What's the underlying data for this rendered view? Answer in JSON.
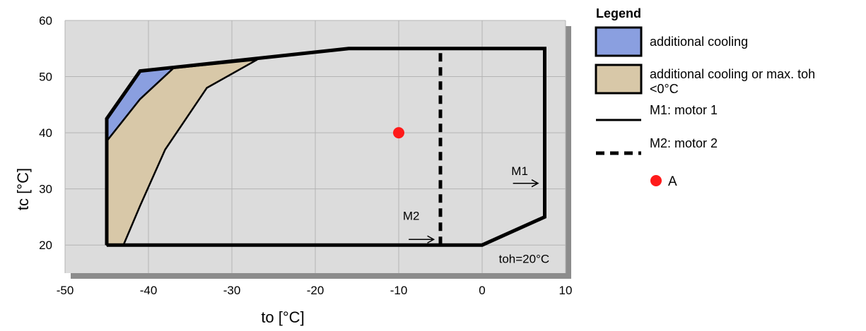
{
  "chart_data": {
    "type": "area",
    "xlabel": "to [°C]",
    "ylabel": "tc [°C]",
    "xlim": [
      -50,
      10
    ],
    "ylim": [
      15,
      60
    ],
    "xticks": [
      -50,
      -40,
      -30,
      -20,
      -10,
      0,
      10
    ],
    "yticks": [
      20,
      30,
      40,
      50,
      60
    ],
    "grid": true,
    "legend_position": "right",
    "legend_title": "Legend",
    "series": [
      {
        "name": "additional cooling",
        "kind": "filled-region",
        "color": "#8a9fe0",
        "points": [
          [
            -45,
            38.5
          ],
          [
            -45,
            42.5
          ],
          [
            -41,
            51
          ],
          [
            -37,
            51.5
          ],
          [
            -41,
            46
          ],
          [
            -45,
            38.5
          ]
        ]
      },
      {
        "name": "additional cooling or max. toh <0°C",
        "kind": "filled-region",
        "color": "#d8c8a8",
        "points": [
          [
            -45,
            20
          ],
          [
            -45,
            38.5
          ],
          [
            -41,
            46
          ],
          [
            -37,
            51.5
          ],
          [
            -27,
            53
          ],
          [
            -33,
            48
          ],
          [
            -38,
            37
          ],
          [
            -41,
            27
          ],
          [
            -43,
            20
          ]
        ]
      },
      {
        "name": "M1: motor 1",
        "kind": "boundary",
        "style": "solid",
        "points": [
          [
            -45,
            20
          ],
          [
            0,
            20
          ],
          [
            7.5,
            25
          ],
          [
            7.5,
            55
          ],
          [
            -16,
            55
          ],
          [
            -41,
            51
          ],
          [
            -45,
            42.5
          ],
          [
            -45,
            20
          ]
        ]
      },
      {
        "name": "M2: motor 2",
        "kind": "boundary",
        "style": "dashed",
        "points": [
          [
            -5,
            20
          ],
          [
            -5,
            55
          ]
        ]
      },
      {
        "name": "A",
        "kind": "point",
        "color": "#ff1a1a",
        "points": [
          [
            -10,
            40
          ]
        ]
      }
    ],
    "annotations": [
      {
        "text": "M1",
        "x": 4.5,
        "y": 32.5
      },
      {
        "text": "M2",
        "x": -8.5,
        "y": 24.5
      },
      {
        "text": "toh=20°C",
        "x": 2,
        "y": 16.8
      }
    ]
  }
}
